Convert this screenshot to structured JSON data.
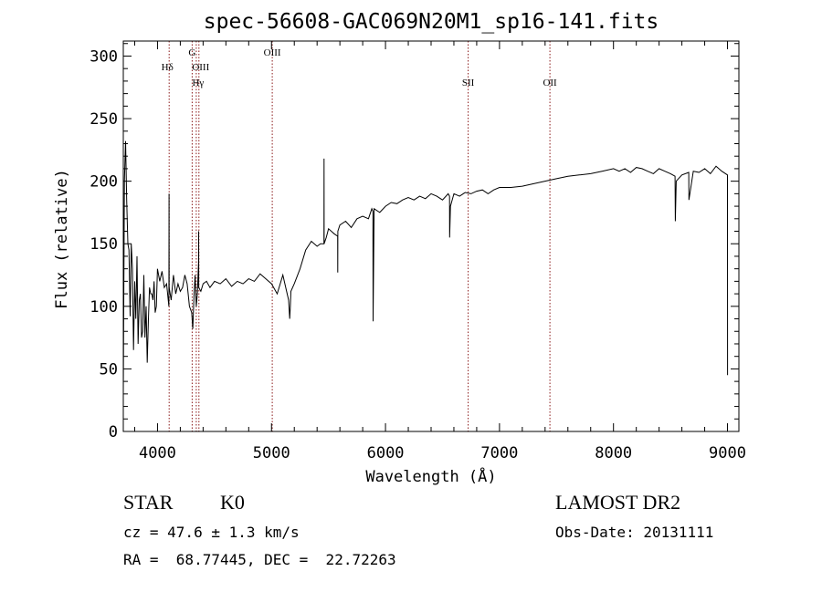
{
  "chart_data": {
    "type": "line",
    "title": "spec-56608-GAC069N20M1_sp16-141.fits",
    "xlabel": "Wavelength (Å)",
    "ylabel": "Flux (relative)",
    "xlim": [
      3700,
      9100
    ],
    "ylim": [
      0,
      312
    ],
    "xticks": [
      4000,
      5000,
      6000,
      7000,
      8000,
      9000
    ],
    "yticks": [
      0,
      50,
      100,
      150,
      200,
      250,
      300
    ],
    "grid": false,
    "series": [
      {
        "color": "#000000",
        "x": [
          3700,
          3710,
          3720,
          3730,
          3740,
          3750,
          3760,
          3770,
          3780,
          3790,
          3800,
          3810,
          3820,
          3830,
          3840,
          3850,
          3860,
          3870,
          3880,
          3890,
          3900,
          3910,
          3920,
          3930,
          3940,
          3950,
          3960,
          3970,
          3980,
          3990,
          4000,
          4020,
          4040,
          4060,
          4080,
          4100,
          4101,
          4102,
          4120,
          4140,
          4160,
          4180,
          4200,
          4220,
          4240,
          4260,
          4280,
          4300,
          4310,
          4320,
          4330,
          4340,
          4350,
          4360,
          4361,
          4362,
          4380,
          4400,
          4430,
          4460,
          4500,
          4550,
          4600,
          4650,
          4700,
          4750,
          4800,
          4850,
          4900,
          4950,
          5000,
          5050,
          5100,
          5150,
          5160,
          5165,
          5170,
          5200,
          5250,
          5300,
          5350,
          5400,
          5430,
          5460,
          5461,
          5462,
          5480,
          5500,
          5550,
          5580,
          5581,
          5582,
          5600,
          5650,
          5700,
          5750,
          5800,
          5850,
          5880,
          5890,
          5891,
          5900,
          5950,
          6000,
          6050,
          6100,
          6150,
          6200,
          6250,
          6300,
          6350,
          6400,
          6450,
          6500,
          6550,
          6562,
          6563,
          6570,
          6600,
          6650,
          6700,
          6750,
          6800,
          6850,
          6900,
          6950,
          7000,
          7100,
          7200,
          7300,
          7400,
          7500,
          7600,
          7700,
          7800,
          7900,
          8000,
          8050,
          8100,
          8150,
          8200,
          8250,
          8300,
          8350,
          8400,
          8450,
          8500,
          8540,
          8542,
          8550,
          8600,
          8660,
          8662,
          8700,
          8750,
          8800,
          8850,
          8900,
          8950,
          9000,
          9001
        ],
        "values": [
          30,
          200,
          232,
          185,
          150,
          145,
          92,
          150,
          130,
          65,
          120,
          90,
          140,
          70,
          105,
          110,
          75,
          80,
          125,
          75,
          100,
          55,
          90,
          115,
          110,
          110,
          105,
          120,
          95,
          100,
          130,
          120,
          128,
          115,
          118,
          100,
          190,
          115,
          105,
          125,
          110,
          118,
          112,
          115,
          125,
          118,
          100,
          95,
          82,
          108,
          125,
          100,
          110,
          135,
          160,
          115,
          112,
          118,
          120,
          115,
          120,
          118,
          122,
          116,
          120,
          118,
          122,
          120,
          126,
          122,
          118,
          110,
          125,
          105,
          90,
          100,
          112,
          118,
          130,
          145,
          152,
          148,
          150,
          150,
          218,
          150,
          155,
          162,
          158,
          156,
          127,
          160,
          165,
          168,
          163,
          170,
          172,
          170,
          178,
          176,
          88,
          178,
          175,
          180,
          183,
          182,
          185,
          187,
          185,
          188,
          186,
          190,
          188,
          185,
          190,
          188,
          155,
          180,
          190,
          188,
          191,
          190,
          192,
          193,
          190,
          193,
          195,
          195,
          196,
          198,
          200,
          202,
          204,
          205,
          206,
          208,
          210,
          208,
          210,
          207,
          211,
          210,
          208,
          206,
          210,
          208,
          206,
          204,
          168,
          200,
          205,
          207,
          185,
          208,
          207,
          210,
          206,
          212,
          208,
          205,
          45
        ]
      }
    ],
    "reference_lines": [
      {
        "x": 4102,
        "label": "Hδ"
      },
      {
        "x": 4304,
        "label": "G"
      },
      {
        "x": 4340,
        "label": "Hγ"
      },
      {
        "x": 4363,
        "label": "OIII"
      },
      {
        "x": 5007,
        "label": "OIII"
      },
      {
        "x": 6725,
        "label": "SII"
      },
      {
        "x": 7442,
        "label": "OII"
      }
    ]
  },
  "info": {
    "object_class": "STAR",
    "subclass": "K0",
    "survey": "LAMOST DR2",
    "redshift": "cz = 47.6 ± 1.3 km/s",
    "obs_date": "Obs-Date: 20131111",
    "coords": "RA =  68.77445, DEC =  22.72263"
  }
}
